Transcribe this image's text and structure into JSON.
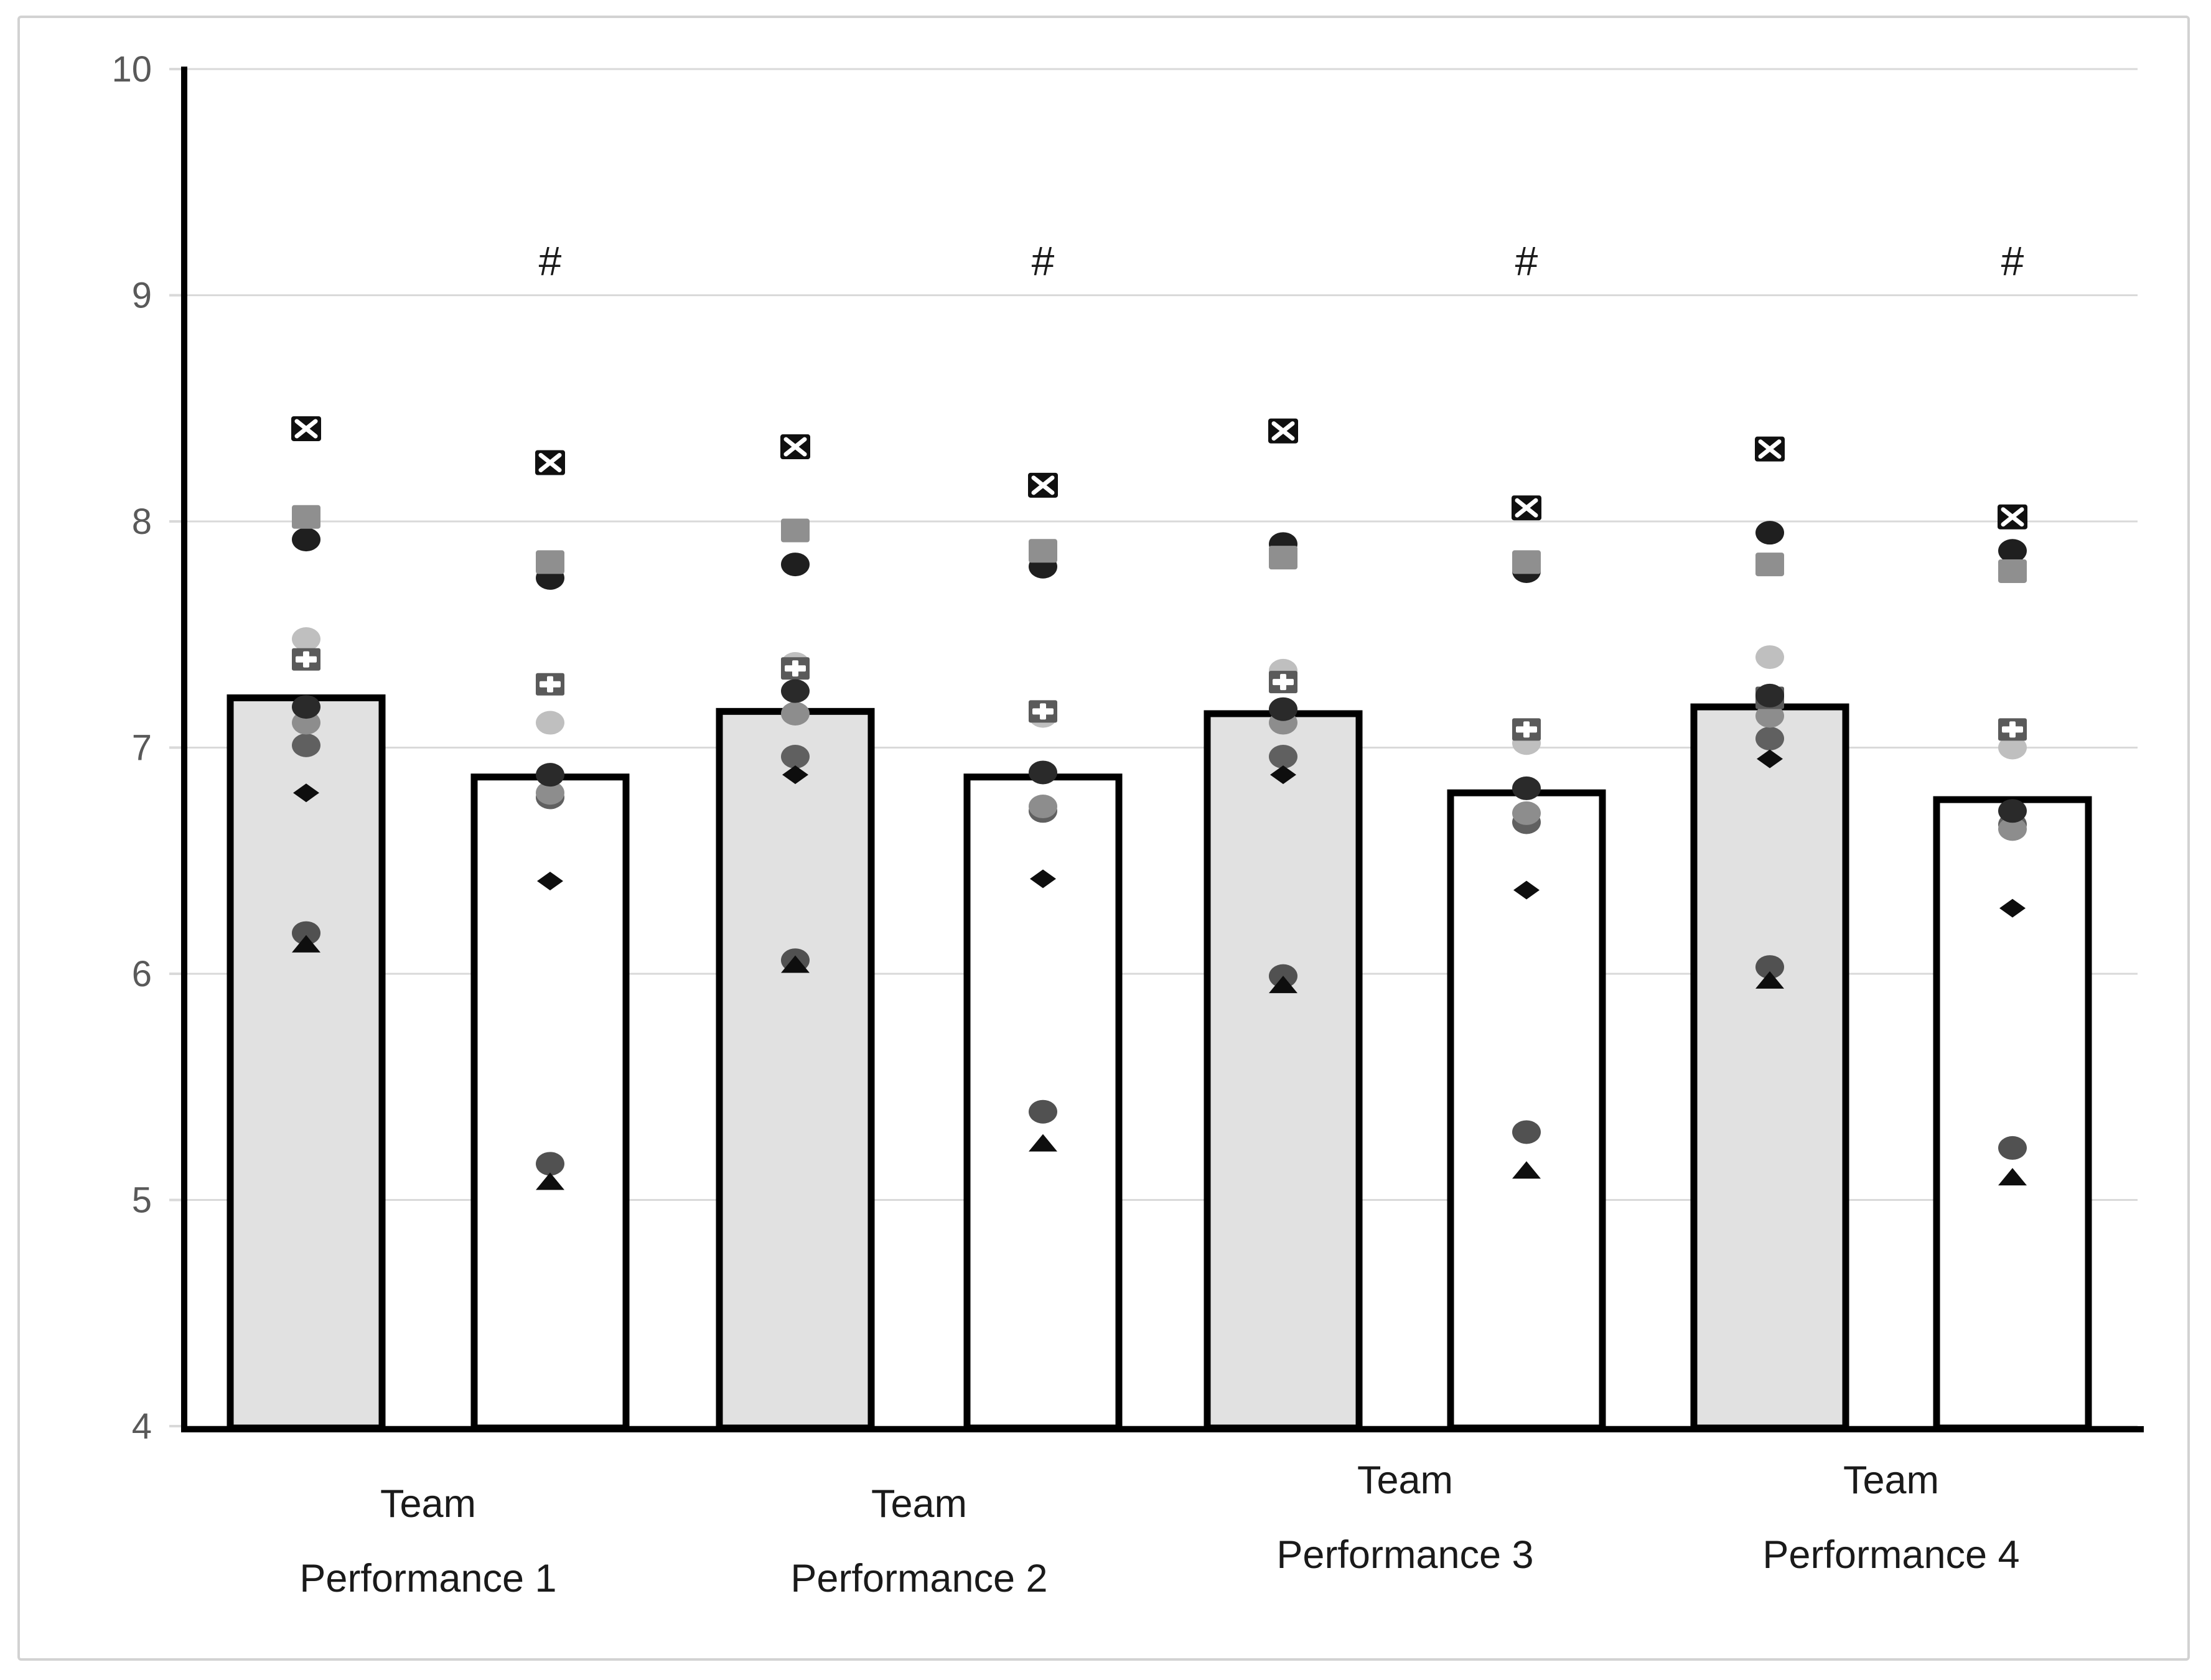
{
  "chart_data": {
    "type": "bar",
    "title": "",
    "xlabel": "",
    "ylabel": "",
    "categories": [
      "Team Performance 1",
      "Team Performance 2",
      "Team Performance 3",
      "Team Performance 4"
    ],
    "category_label_lines": [
      [
        "Team",
        "Performance 1"
      ],
      [
        "Team",
        "Performance 2"
      ],
      [
        "Team",
        "Performance 3"
      ],
      [
        "Team",
        "Performance 4"
      ]
    ],
    "ylim": [
      4,
      10
    ],
    "yticks": [
      10,
      9,
      8,
      7,
      6,
      5,
      4
    ],
    "grid": true,
    "legend": "none",
    "bar_series": [
      {
        "name": "shaded-bar",
        "fill": "#e1e1e1",
        "stroke": "#000000",
        "values": [
          7.22,
          7.16,
          7.15,
          7.18
        ]
      },
      {
        "name": "white-bar",
        "fill": "#ffffff",
        "stroke": "#000000",
        "values": [
          6.87,
          6.87,
          6.8,
          6.77
        ]
      }
    ],
    "point_columns": [
      "TP1-shaded",
      "TP1-white",
      "TP2-shaded",
      "TP2-white",
      "TP3-shaded",
      "TP3-white",
      "TP4-shaded",
      "TP4-white"
    ],
    "point_series": [
      {
        "name": "light-gray-circle",
        "shape": "circle",
        "color": "#bfbfbf",
        "values": [
          7.48,
          7.11,
          7.37,
          7.14,
          7.34,
          7.02,
          7.4,
          7.0
        ]
      },
      {
        "name": "mid-gray-circle",
        "shape": "circle",
        "color": "#606060",
        "values": [
          7.01,
          6.78,
          6.96,
          6.72,
          6.96,
          6.67,
          7.04,
          6.66
        ]
      },
      {
        "name": "gray-circle",
        "shape": "circle",
        "color": "#8d8d8d",
        "values": [
          7.11,
          6.8,
          7.15,
          6.74,
          7.11,
          6.71,
          7.14,
          6.64
        ]
      },
      {
        "name": "slate-gray-circle",
        "shape": "circle",
        "color": "#515151",
        "values": [
          6.18,
          5.16,
          6.06,
          5.39,
          5.99,
          5.3,
          6.03,
          5.23
        ]
      },
      {
        "name": "black-circle",
        "shape": "circle",
        "color": "#1f1f1f",
        "values": [
          7.92,
          7.75,
          7.81,
          7.8,
          7.9,
          7.78,
          7.95,
          7.87
        ]
      },
      {
        "name": "gray-square",
        "shape": "square",
        "color": "#8f8f8f",
        "values": [
          8.02,
          7.82,
          7.96,
          7.87,
          7.84,
          7.82,
          7.81,
          7.78
        ]
      },
      {
        "name": "boxed-x-square",
        "shape": "square-x",
        "color": "#101010",
        "values": [
          8.41,
          8.26,
          8.33,
          8.16,
          8.4,
          8.06,
          8.32,
          8.02
        ]
      },
      {
        "name": "plus-square",
        "shape": "square-plus",
        "color": "#5a5a5a",
        "values": [
          7.39,
          7.28,
          7.35,
          7.16,
          7.29,
          7.08,
          7.22,
          7.08
        ]
      },
      {
        "name": "dark-circle",
        "shape": "circle",
        "color": "#2a2a2a",
        "values": [
          7.18,
          6.88,
          7.25,
          6.89,
          7.17,
          6.82,
          7.23,
          6.72
        ]
      },
      {
        "name": "black-diamond",
        "shape": "diamond",
        "color": "#0e0e0e",
        "values": [
          6.8,
          6.41,
          6.88,
          6.42,
          6.88,
          6.37,
          6.95,
          6.29
        ]
      },
      {
        "name": "black-triangle",
        "shape": "triangle",
        "color": "#0e0e0e",
        "values": [
          6.13,
          5.08,
          6.04,
          5.25,
          5.95,
          5.13,
          5.97,
          5.1
        ]
      }
    ],
    "significance_markers": {
      "symbol": "#",
      "value": 9.15,
      "applies_to": "white bars",
      "columns": [
        1,
        3,
        5,
        7
      ]
    }
  },
  "colors": {
    "gridline": "#d9d9d9",
    "axis_line": "#000000",
    "y_tick_label": "#595959",
    "x_category_label": "#1a1a1a",
    "hash_symbol": "#1a1a1a",
    "figure_border": "#d2d2d2",
    "background": "#ffffff"
  }
}
